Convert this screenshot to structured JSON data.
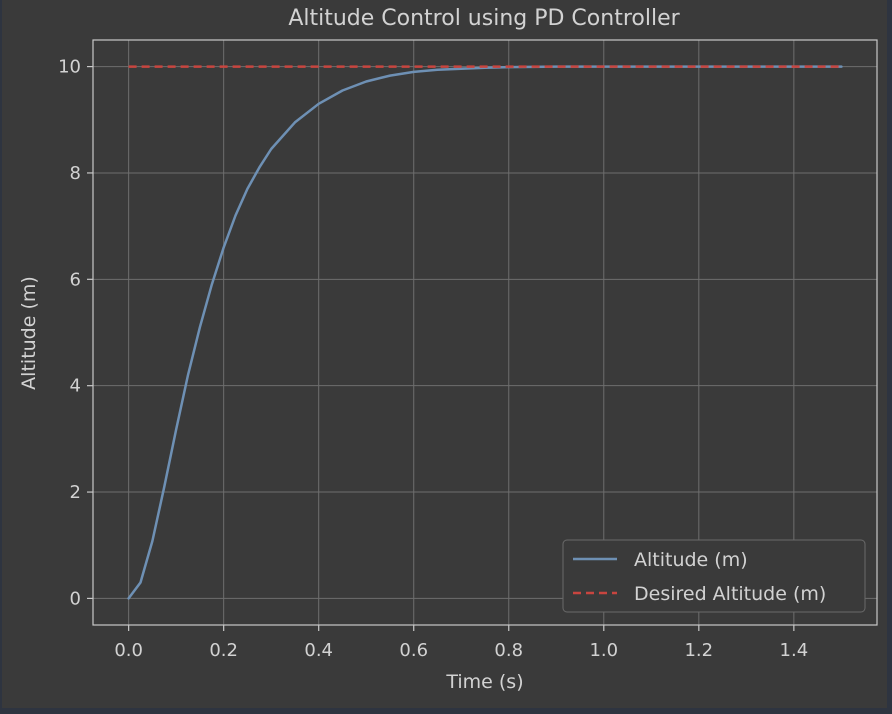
{
  "chart_data": {
    "type": "line",
    "title": "Altitude Control using PD Controller",
    "xlabel": "Time (s)",
    "ylabel": "Altitude (m)",
    "xlim": [
      -0.075,
      1.575
    ],
    "ylim": [
      -0.5,
      10.5
    ],
    "xticks": [
      "0.0",
      "0.2",
      "0.4",
      "0.6",
      "0.8",
      "1.0",
      "1.2",
      "1.4"
    ],
    "yticks": [
      "0",
      "2",
      "4",
      "6",
      "8",
      "10"
    ],
    "grid": true,
    "legend_position": "lower-right",
    "colors": {
      "background": "#3a3a3a",
      "page": "#2e3440",
      "grid": "#6e6e6e",
      "axes": "#c8c8c8",
      "altitude": "#6e90b4",
      "desired": "#c8453f"
    },
    "series": [
      {
        "name": "Altitude (m)",
        "style": "solid",
        "x": [
          0.0,
          0.025,
          0.05,
          0.075,
          0.1,
          0.125,
          0.15,
          0.175,
          0.2,
          0.225,
          0.25,
          0.275,
          0.3,
          0.35,
          0.4,
          0.45,
          0.5,
          0.55,
          0.6,
          0.65,
          0.7,
          0.75,
          0.8,
          0.9,
          1.0,
          1.1,
          1.2,
          1.3,
          1.4,
          1.5
        ],
        "y": [
          0.0,
          0.3,
          1.08,
          2.1,
          3.18,
          4.2,
          5.1,
          5.9,
          6.6,
          7.2,
          7.7,
          8.1,
          8.45,
          8.95,
          9.3,
          9.55,
          9.72,
          9.83,
          9.9,
          9.94,
          9.96,
          9.98,
          9.99,
          10.0,
          10.0,
          10.0,
          10.0,
          10.0,
          10.0,
          10.0
        ]
      },
      {
        "name": "Desired Altitude (m)",
        "style": "dashed",
        "x": [
          0.0,
          1.5
        ],
        "y": [
          10.0,
          10.0
        ]
      }
    ]
  }
}
